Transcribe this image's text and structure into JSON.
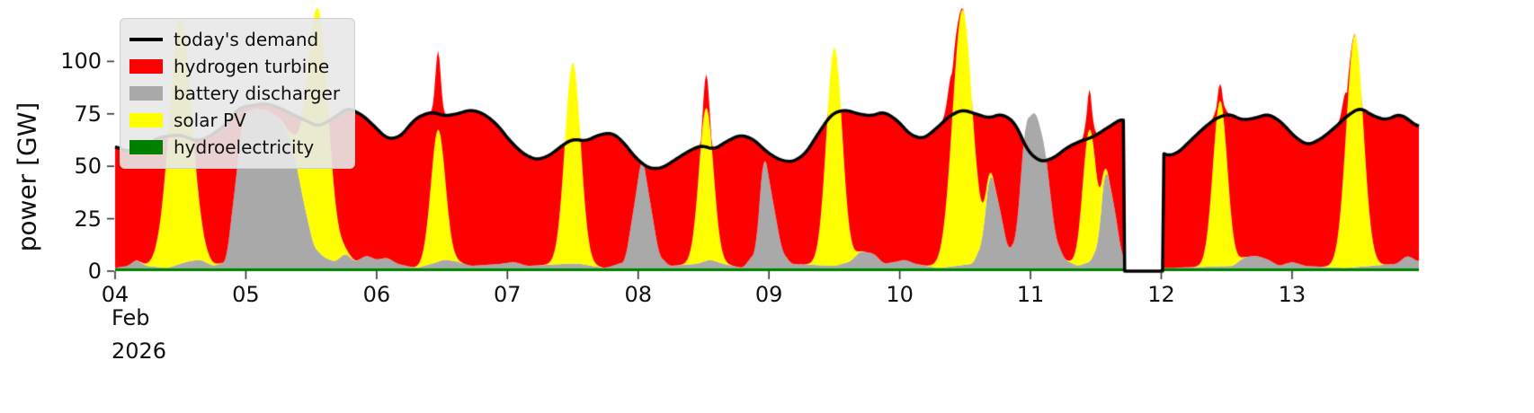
{
  "chart_data": {
    "type": "area",
    "title": "",
    "ylabel": "power [GW]",
    "xlabel": "",
    "x_tick_labels": [
      "04",
      "05",
      "06",
      "07",
      "08",
      "09",
      "10",
      "11",
      "12",
      "13"
    ],
    "x_axis_sub_labels": [
      "Feb",
      "2026"
    ],
    "y_ticks": [
      0,
      25,
      50,
      75,
      100
    ],
    "xlim": [
      4.0,
      13.97
    ],
    "ylim": [
      0,
      125
    ],
    "grid": false,
    "legend_position": "upper-left",
    "gap_no_data": [
      11.715,
      12.02
    ],
    "colors": {
      "demand": "#000000",
      "hydrogen_turbine": "#ff0000",
      "battery_discharger": "#a9a9a9",
      "solar_pv": "#ffff00",
      "hydroelectricity": "#008000",
      "text": "#111111",
      "tick": "#333333"
    },
    "legend": [
      {
        "label": "today's demand",
        "color": "#000000",
        "type": "line"
      },
      {
        "label": "hydrogen turbine",
        "color": "#ff0000",
        "type": "patch"
      },
      {
        "label": "battery discharger",
        "color": "#a9a9a9",
        "type": "patch"
      },
      {
        "label": "solar PV",
        "color": "#ffff00",
        "type": "patch"
      },
      {
        "label": "hydroelectricity",
        "color": "#008000",
        "type": "patch"
      }
    ],
    "stack_order_bottom_to_top": [
      "hydroelectricity",
      "battery_discharger",
      "solar_pv",
      "hydrogen_turbine"
    ],
    "series": {
      "hydroelectricity": {
        "constant_gw": 1.5
      },
      "todays_demand": {
        "keypoints": [
          [
            4.0,
            60
          ],
          [
            4.08,
            57
          ],
          [
            4.2,
            59
          ],
          [
            4.35,
            64
          ],
          [
            4.5,
            65
          ],
          [
            4.62,
            62
          ],
          [
            4.72,
            64
          ],
          [
            4.85,
            70
          ],
          [
            4.95,
            78
          ],
          [
            5.05,
            79
          ],
          [
            5.15,
            80
          ],
          [
            5.25,
            78
          ],
          [
            5.35,
            75
          ],
          [
            5.45,
            72
          ],
          [
            5.55,
            69
          ],
          [
            5.65,
            72
          ],
          [
            5.78,
            78
          ],
          [
            5.9,
            74
          ],
          [
            6.0,
            68
          ],
          [
            6.08,
            63
          ],
          [
            6.18,
            64
          ],
          [
            6.3,
            73
          ],
          [
            6.42,
            76
          ],
          [
            6.52,
            74
          ],
          [
            6.62,
            75
          ],
          [
            6.72,
            77
          ],
          [
            6.82,
            75
          ],
          [
            6.92,
            70
          ],
          [
            7.02,
            62
          ],
          [
            7.12,
            56
          ],
          [
            7.22,
            53
          ],
          [
            7.32,
            55
          ],
          [
            7.42,
            60
          ],
          [
            7.5,
            63
          ],
          [
            7.6,
            62
          ],
          [
            7.7,
            65
          ],
          [
            7.8,
            66
          ],
          [
            7.88,
            62
          ],
          [
            7.98,
            54
          ],
          [
            8.08,
            49
          ],
          [
            8.18,
            49
          ],
          [
            8.28,
            53
          ],
          [
            8.38,
            57
          ],
          [
            8.48,
            60
          ],
          [
            8.58,
            58
          ],
          [
            8.68,
            62
          ],
          [
            8.78,
            65
          ],
          [
            8.88,
            63
          ],
          [
            8.98,
            57
          ],
          [
            9.08,
            53
          ],
          [
            9.18,
            52
          ],
          [
            9.28,
            56
          ],
          [
            9.38,
            66
          ],
          [
            9.48,
            75
          ],
          [
            9.58,
            77
          ],
          [
            9.68,
            75
          ],
          [
            9.78,
            74
          ],
          [
            9.88,
            76
          ],
          [
            9.98,
            72
          ],
          [
            10.08,
            65
          ],
          [
            10.18,
            63
          ],
          [
            10.28,
            68
          ],
          [
            10.38,
            74
          ],
          [
            10.48,
            77
          ],
          [
            10.58,
            75
          ],
          [
            10.68,
            73
          ],
          [
            10.78,
            75
          ],
          [
            10.88,
            71
          ],
          [
            10.98,
            57
          ],
          [
            11.08,
            52
          ],
          [
            11.18,
            54
          ],
          [
            11.28,
            59
          ],
          [
            11.38,
            62
          ],
          [
            11.48,
            64
          ],
          [
            11.58,
            68
          ],
          [
            11.68,
            72
          ],
          [
            11.71,
            73
          ],
          [
            12.03,
            55
          ],
          [
            12.12,
            56
          ],
          [
            12.22,
            62
          ],
          [
            12.32,
            68
          ],
          [
            12.42,
            73
          ],
          [
            12.52,
            75
          ],
          [
            12.62,
            72
          ],
          [
            12.72,
            73
          ],
          [
            12.82,
            75
          ],
          [
            12.92,
            71
          ],
          [
            13.02,
            64
          ],
          [
            13.12,
            60
          ],
          [
            13.22,
            63
          ],
          [
            13.32,
            68
          ],
          [
            13.42,
            74
          ],
          [
            13.52,
            78
          ],
          [
            13.62,
            74
          ],
          [
            13.72,
            72
          ],
          [
            13.82,
            75
          ],
          [
            13.9,
            72
          ],
          [
            13.97,
            68
          ]
        ]
      },
      "battery_discharger": {
        "keypoints": [
          [
            4.0,
            0
          ],
          [
            4.1,
            1
          ],
          [
            4.16,
            4
          ],
          [
            4.24,
            1
          ],
          [
            4.4,
            0
          ],
          [
            4.55,
            3
          ],
          [
            4.65,
            4
          ],
          [
            4.75,
            1
          ],
          [
            4.85,
            3
          ],
          [
            4.92,
            40
          ],
          [
            4.98,
            74
          ],
          [
            5.08,
            76
          ],
          [
            5.18,
            75
          ],
          [
            5.28,
            70
          ],
          [
            5.36,
            58
          ],
          [
            5.44,
            32
          ],
          [
            5.52,
            10
          ],
          [
            5.6,
            5
          ],
          [
            5.68,
            3
          ],
          [
            5.76,
            7
          ],
          [
            5.84,
            3
          ],
          [
            5.92,
            6
          ],
          [
            6.0,
            4
          ],
          [
            6.08,
            5
          ],
          [
            6.16,
            2
          ],
          [
            6.3,
            0
          ],
          [
            6.42,
            2
          ],
          [
            6.52,
            4
          ],
          [
            6.62,
            3
          ],
          [
            6.72,
            1
          ],
          [
            6.95,
            2
          ],
          [
            7.05,
            3
          ],
          [
            7.15,
            1
          ],
          [
            7.45,
            2
          ],
          [
            7.55,
            2
          ],
          [
            7.75,
            0
          ],
          [
            7.9,
            3
          ],
          [
            7.97,
            30
          ],
          [
            8.03,
            55
          ],
          [
            8.09,
            32
          ],
          [
            8.16,
            6
          ],
          [
            8.24,
            1
          ],
          [
            8.45,
            2
          ],
          [
            8.55,
            4
          ],
          [
            8.65,
            2
          ],
          [
            8.8,
            0
          ],
          [
            8.9,
            8
          ],
          [
            8.96,
            57
          ],
          [
            9.03,
            32
          ],
          [
            9.1,
            8
          ],
          [
            9.17,
            2
          ],
          [
            9.5,
            1
          ],
          [
            9.62,
            3
          ],
          [
            9.7,
            8
          ],
          [
            9.8,
            7
          ],
          [
            9.88,
            2
          ],
          [
            9.97,
            3
          ],
          [
            10.04,
            4
          ],
          [
            10.12,
            2
          ],
          [
            10.3,
            0
          ],
          [
            10.56,
            2
          ],
          [
            10.63,
            12
          ],
          [
            10.69,
            48
          ],
          [
            10.76,
            30
          ],
          [
            10.83,
            8
          ],
          [
            10.89,
            14
          ],
          [
            10.96,
            70
          ],
          [
            11.04,
            75
          ],
          [
            11.11,
            58
          ],
          [
            11.19,
            15
          ],
          [
            11.26,
            4
          ],
          [
            11.36,
            1
          ],
          [
            11.46,
            3
          ],
          [
            11.52,
            12
          ],
          [
            11.57,
            50
          ],
          [
            11.64,
            30
          ],
          [
            11.7,
            5
          ],
          [
            12.03,
            0
          ],
          [
            12.55,
            1
          ],
          [
            12.63,
            5
          ],
          [
            12.72,
            6
          ],
          [
            12.82,
            4
          ],
          [
            12.9,
            1
          ],
          [
            13.0,
            3
          ],
          [
            13.1,
            1
          ],
          [
            13.4,
            0
          ],
          [
            13.8,
            2
          ],
          [
            13.88,
            6
          ],
          [
            13.97,
            3
          ]
        ]
      },
      "solar_pv": {
        "peaks_center_heightGW_sigmaDays": [
          [
            4.5,
            117,
            0.085
          ],
          [
            5.55,
            116,
            0.08
          ],
          [
            6.47,
            63,
            0.055
          ],
          [
            7.5,
            96,
            0.06
          ],
          [
            8.52,
            73,
            0.055
          ],
          [
            9.5,
            104,
            0.06
          ],
          [
            10.48,
            122,
            0.075
          ],
          [
            11.45,
            63,
            0.05
          ],
          [
            12.45,
            79,
            0.055
          ],
          [
            13.48,
            111,
            0.065
          ]
        ]
      },
      "hydrogen_turbine": {
        "mode": "residual_of_demand",
        "extra_peaks_center_heightGW_sigmaDays": [
          [
            6.47,
            30,
            0.02
          ],
          [
            8.52,
            16,
            0.02
          ],
          [
            10.4,
            20,
            0.03
          ],
          [
            11.45,
            19,
            0.022
          ],
          [
            12.45,
            8,
            0.03
          ],
          [
            13.41,
            12,
            0.024
          ]
        ]
      }
    }
  }
}
